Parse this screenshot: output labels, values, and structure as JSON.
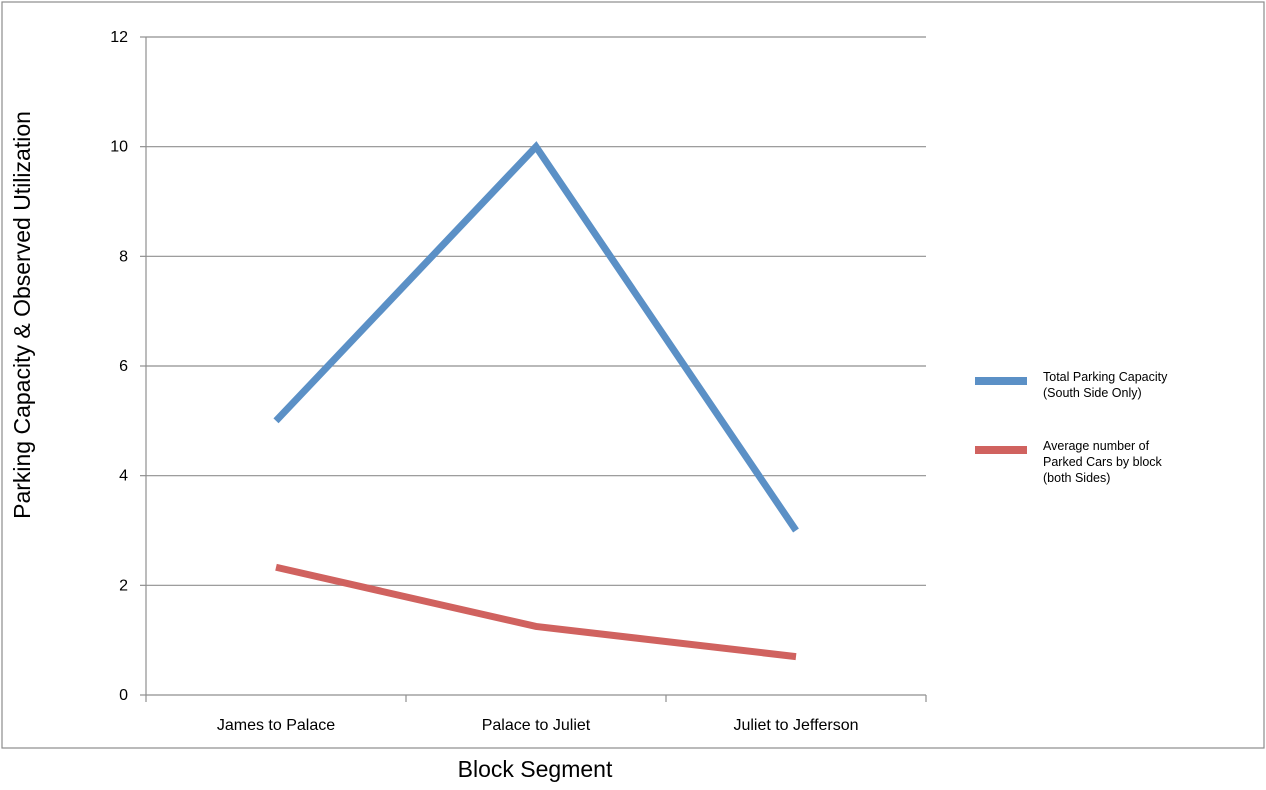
{
  "chart_data": {
    "type": "line",
    "title": "",
    "xlabel": "Block Segment",
    "ylabel": "Parking Capacity & Observed Utilization",
    "categories": [
      "James to Palace",
      "Palace to Juliet",
      "Juliet to Jefferson"
    ],
    "ylim": [
      0,
      12
    ],
    "yticks": [
      0,
      2,
      4,
      6,
      8,
      10,
      12
    ],
    "grid": true,
    "legend_position": "right",
    "series": [
      {
        "name": "Total Parking Capacity (South Side Only)",
        "legend_lines": [
          "Total Parking Capacity",
          "(South Side Only)"
        ],
        "values": [
          5,
          10,
          3
        ],
        "color": "#5b90c6"
      },
      {
        "name": "Average number of Parked Cars by block (both Sides)",
        "legend_lines": [
          "Average number of",
          "Parked Cars by block",
          "(both Sides)"
        ],
        "values": [
          2.33,
          1.25,
          0.7
        ],
        "color": "#d0625f"
      }
    ]
  }
}
